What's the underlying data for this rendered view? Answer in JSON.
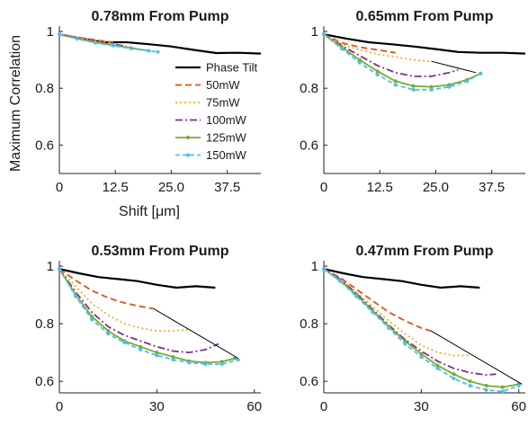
{
  "y_axis_label": "Maximum Correlation",
  "x_axis_label": "Shift [μm]",
  "legend": [
    {
      "name": "Phase Tilt",
      "color": "#000000",
      "style": "solid"
    },
    {
      "name": "50mW",
      "color": "#d95319",
      "style": "dashed"
    },
    {
      "name": "75mW",
      "color": "#edb120",
      "style": "dotted"
    },
    {
      "name": "100mW",
      "color": "#7e2f8e",
      "style": "dashdot"
    },
    {
      "name": "125mW",
      "color": "#77ac30",
      "style": "solid-marker"
    },
    {
      "name": "150mW",
      "color": "#4dbeee",
      "style": "dashed-marker"
    }
  ],
  "chart_data": [
    {
      "type": "line",
      "title": "0.78mm From Pump",
      "xlim": [
        0,
        45
      ],
      "ylim": [
        0.5,
        1.0
      ],
      "xticks": [
        "0",
        "12.5",
        "25.0",
        "37.5"
      ],
      "yticks": [
        "0.6",
        "0.8",
        "1"
      ],
      "xlabel": "Shift [μm]",
      "ylabel": "Maximum Correlation",
      "series": [
        {
          "name": "Phase Tilt",
          "x": [
            0,
            5,
            10,
            15,
            20,
            25,
            30,
            35,
            40,
            45
          ],
          "y": [
            0.99,
            0.975,
            0.962,
            0.962,
            0.955,
            0.947,
            0.935,
            0.924,
            0.925,
            0.922
          ]
        },
        {
          "name": "50mW",
          "x": [
            0,
            3,
            6,
            9,
            12
          ],
          "y": [
            0.99,
            0.982,
            0.975,
            0.968,
            0.962
          ]
        },
        {
          "name": "75mW",
          "x": [
            0,
            3,
            6,
            9,
            12
          ],
          "y": [
            0.99,
            0.98,
            0.972,
            0.965,
            0.96
          ]
        },
        {
          "name": "100mW",
          "x": [
            0,
            3,
            6,
            9,
            12,
            15
          ],
          "y": [
            0.99,
            0.978,
            0.97,
            0.962,
            0.955,
            0.948
          ]
        },
        {
          "name": "125mW",
          "x": [
            0,
            4,
            8,
            12,
            16,
            20
          ],
          "y": [
            0.99,
            0.975,
            0.962,
            0.952,
            0.942,
            0.932
          ]
        },
        {
          "name": "150mW",
          "x": [
            0,
            4,
            8,
            12,
            16,
            20,
            22
          ],
          "y": [
            0.99,
            0.974,
            0.96,
            0.95,
            0.94,
            0.932,
            0.928
          ]
        }
      ]
    },
    {
      "type": "line",
      "title": "0.65mm From Pump",
      "xlim": [
        0,
        45
      ],
      "ylim": [
        0.5,
        1.0
      ],
      "xticks": [
        "0",
        "12.5",
        "25.0",
        "37.5"
      ],
      "yticks": [
        "0.6",
        "0.8",
        "1"
      ],
      "series": [
        {
          "name": "Phase Tilt",
          "x": [
            0,
            5,
            10,
            15,
            20,
            25,
            30,
            35,
            40,
            45
          ],
          "y": [
            0.99,
            0.975,
            0.962,
            0.955,
            0.947,
            0.938,
            0.928,
            0.925,
            0.925,
            0.922
          ]
        },
        {
          "name": "50mW",
          "x": [
            0,
            4,
            8,
            12,
            16
          ],
          "y": [
            0.99,
            0.96,
            0.945,
            0.935,
            0.925
          ]
        },
        {
          "name": "75mW",
          "x": [
            0,
            4,
            8,
            12,
            16,
            20,
            24
          ],
          "y": [
            0.99,
            0.955,
            0.935,
            0.92,
            0.91,
            0.9,
            0.895
          ]
        },
        {
          "name": "100mW",
          "x": [
            0,
            4,
            8,
            12,
            16,
            20,
            24,
            28,
            30
          ],
          "y": [
            0.99,
            0.95,
            0.915,
            0.88,
            0.855,
            0.842,
            0.842,
            0.855,
            0.865
          ]
        },
        {
          "name": "125mW",
          "x": [
            0,
            4,
            8,
            12,
            16,
            20,
            24,
            28,
            32,
            35
          ],
          "y": [
            0.99,
            0.945,
            0.9,
            0.86,
            0.825,
            0.808,
            0.805,
            0.812,
            0.83,
            0.852
          ]
        },
        {
          "name": "150mW",
          "x": [
            0,
            4,
            8,
            12,
            16,
            20,
            24,
            28,
            32,
            35
          ],
          "y": [
            0.99,
            0.94,
            0.89,
            0.848,
            0.812,
            0.795,
            0.795,
            0.805,
            0.825,
            0.852
          ]
        },
        {
          "name": "",
          "x": [
            24,
            34
          ],
          "y": [
            0.895,
            0.855
          ]
        }
      ]
    },
    {
      "type": "line",
      "title": "0.53mm From Pump",
      "xlim": [
        0,
        62
      ],
      "ylim": [
        0.56,
        1.0
      ],
      "xticks": [
        "0",
        "30",
        "60"
      ],
      "yticks": [
        "0.6",
        "0.8",
        "1"
      ],
      "series": [
        {
          "name": "Phase Tilt",
          "x": [
            0,
            6,
            12,
            18,
            24,
            30,
            36,
            42,
            48
          ],
          "y": [
            0.99,
            0.975,
            0.962,
            0.955,
            0.948,
            0.935,
            0.925,
            0.93,
            0.925
          ]
        },
        {
          "name": "50mW",
          "x": [
            0,
            5,
            10,
            15,
            20,
            25,
            29
          ],
          "y": [
            0.99,
            0.95,
            0.915,
            0.89,
            0.872,
            0.86,
            0.852
          ]
        },
        {
          "name": "75mW",
          "x": [
            0,
            5,
            10,
            15,
            20,
            25,
            30,
            35,
            40
          ],
          "y": [
            0.99,
            0.93,
            0.87,
            0.83,
            0.8,
            0.785,
            0.775,
            0.775,
            0.78
          ]
        },
        {
          "name": "100mW",
          "x": [
            0,
            5,
            10,
            15,
            20,
            25,
            30,
            35,
            40,
            45,
            49
          ],
          "y": [
            0.99,
            0.91,
            0.84,
            0.79,
            0.76,
            0.74,
            0.72,
            0.705,
            0.7,
            0.71,
            0.73
          ]
        },
        {
          "name": "125mW",
          "x": [
            0,
            5,
            10,
            15,
            20,
            25,
            30,
            35,
            40,
            45,
            50,
            54
          ],
          "y": [
            0.99,
            0.9,
            0.825,
            0.775,
            0.74,
            0.72,
            0.7,
            0.685,
            0.67,
            0.665,
            0.668,
            0.68
          ]
        },
        {
          "name": "150mW",
          "x": [
            0,
            5,
            10,
            15,
            20,
            25,
            30,
            35,
            40,
            45,
            50,
            55
          ],
          "y": [
            0.99,
            0.895,
            0.815,
            0.765,
            0.735,
            0.71,
            0.69,
            0.675,
            0.665,
            0.66,
            0.66,
            0.675
          ]
        },
        {
          "name": "",
          "x": [
            29,
            55
          ],
          "y": [
            0.852,
            0.68
          ]
        }
      ]
    },
    {
      "type": "line",
      "title": "0.47mm From Pump",
      "xlim": [
        0,
        62
      ],
      "ylim": [
        0.56,
        1.0
      ],
      "xticks": [
        "0",
        "30",
        "60"
      ],
      "yticks": [
        "0.6",
        "0.8",
        "1"
      ],
      "series": [
        {
          "name": "Phase Tilt",
          "x": [
            0,
            6,
            12,
            18,
            24,
            30,
            36,
            42,
            48
          ],
          "y": [
            0.99,
            0.975,
            0.962,
            0.955,
            0.948,
            0.935,
            0.925,
            0.93,
            0.925
          ]
        },
        {
          "name": "50mW",
          "x": [
            0,
            5,
            10,
            15,
            20,
            25,
            30,
            33
          ],
          "y": [
            0.99,
            0.96,
            0.92,
            0.88,
            0.84,
            0.81,
            0.785,
            0.775
          ]
        },
        {
          "name": "75mW",
          "x": [
            0,
            5,
            10,
            15,
            20,
            25,
            30,
            35,
            40,
            45
          ],
          "y": [
            0.99,
            0.955,
            0.91,
            0.86,
            0.81,
            0.765,
            0.725,
            0.7,
            0.69,
            0.69
          ]
        },
        {
          "name": "100mW",
          "x": [
            0,
            5,
            10,
            15,
            20,
            25,
            30,
            35,
            40,
            45,
            50,
            53
          ],
          "y": [
            0.99,
            0.955,
            0.905,
            0.85,
            0.795,
            0.745,
            0.705,
            0.67,
            0.645,
            0.63,
            0.622,
            0.625
          ]
        },
        {
          "name": "125mW",
          "x": [
            0,
            5,
            10,
            15,
            20,
            25,
            30,
            35,
            40,
            45,
            50,
            55,
            60
          ],
          "y": [
            0.99,
            0.95,
            0.9,
            0.845,
            0.79,
            0.74,
            0.695,
            0.655,
            0.625,
            0.6,
            0.585,
            0.58,
            0.59
          ]
        },
        {
          "name": "150mW",
          "x": [
            0,
            5,
            10,
            15,
            20,
            25,
            30,
            35,
            40,
            45,
            50,
            55,
            60
          ],
          "y": [
            0.99,
            0.948,
            0.895,
            0.84,
            0.785,
            0.73,
            0.685,
            0.645,
            0.61,
            0.585,
            0.57,
            0.565,
            0.585
          ]
        },
        {
          "name": "",
          "x": [
            33,
            61
          ],
          "y": [
            0.775,
            0.59
          ]
        }
      ]
    }
  ]
}
